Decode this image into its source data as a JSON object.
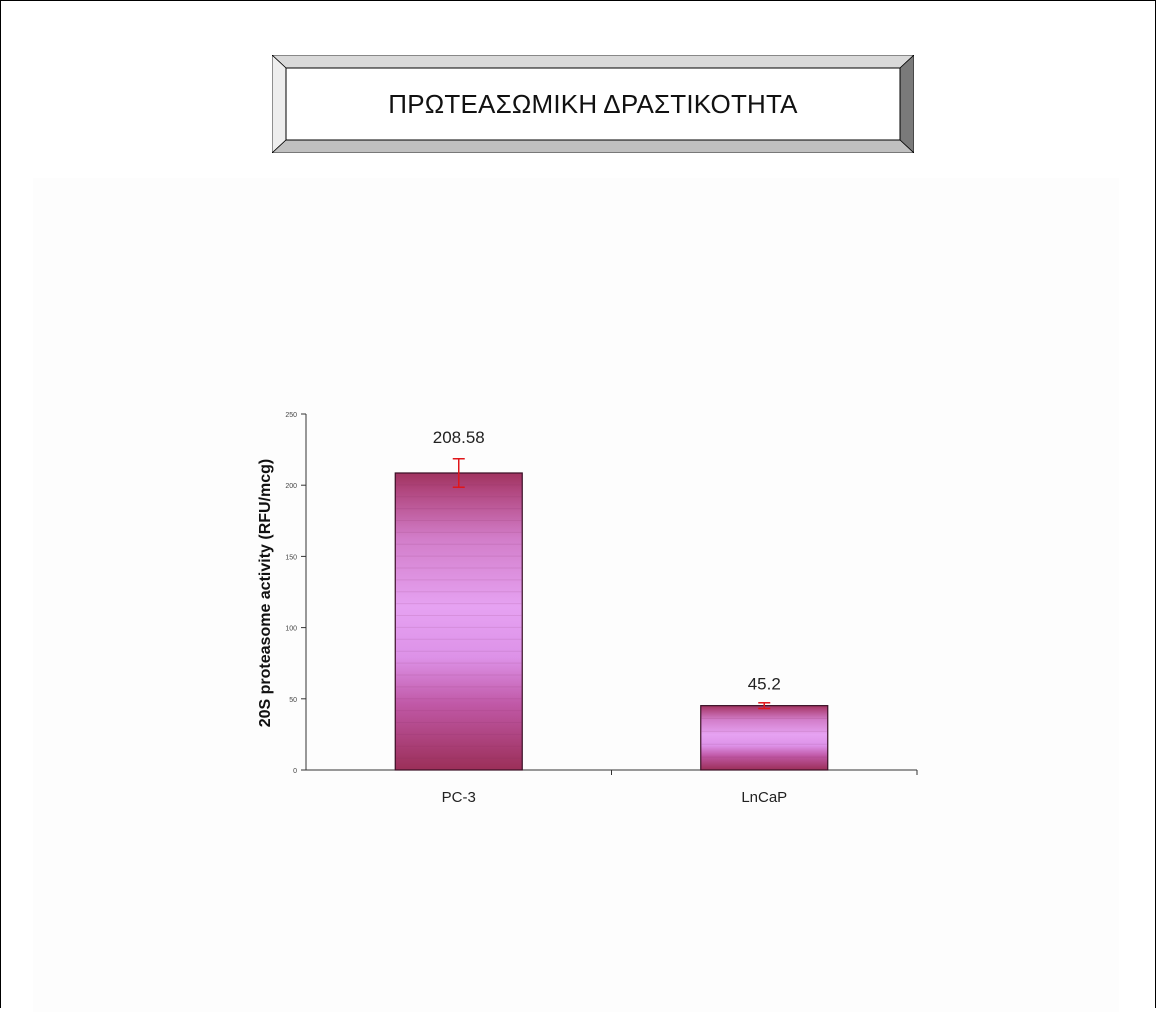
{
  "header": {
    "title": "ΠΡΩΤΕΑΣΩΜΙΚΗ ΔΡΑΣΤΙΚΟΤΗΤΑ"
  },
  "chart_data": {
    "type": "bar",
    "categories": [
      "PC-3",
      "LnCaP"
    ],
    "values": [
      208.58,
      45.2
    ],
    "errors": [
      10,
      2
    ],
    "data_labels": [
      "208.58",
      "45.2"
    ],
    "ylabel": "20S proteasome activity (RFU/mcg)",
    "xlabel": "",
    "ylim": [
      0,
      250
    ],
    "yticks": [
      0,
      50,
      100,
      150,
      200,
      250
    ],
    "colors": {
      "bar_light": "#e39cf0",
      "bar_dark": "#a0335f",
      "bar_mid": "#c766b4",
      "error": "#e0161a",
      "axis": "#333333"
    },
    "grid": false
  }
}
